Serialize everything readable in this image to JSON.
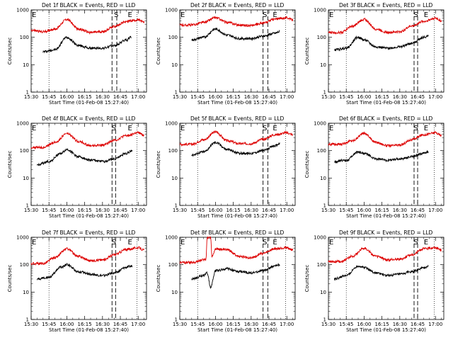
{
  "chart_data": [
    {
      "type": "line",
      "title": "Det 1f BLACK = Events, RED = LLD",
      "xlabel": "Start Time (01-Feb-08 15:27:40)",
      "ylabel": "Counts/sec",
      "x_ticks": [
        "15:30",
        "15:45",
        "16:00",
        "16:15",
        "16:30",
        "16:45",
        "17:00"
      ],
      "y_ticks": [
        "1",
        "10",
        "100",
        "1000"
      ],
      "ylim": [
        1,
        1000
      ],
      "y_scale": "log",
      "markers": {
        "dotted_times": [
          "15:45",
          "16:59"
        ],
        "dashed_times": [
          "16:38",
          "16:42"
        ],
        "S_time": "16:42",
        "E_time": "16:53"
      },
      "series": [
        {
          "color": "#000000",
          "x": [
            "15:40",
            "15:50",
            "16:00",
            "16:10",
            "16:20",
            "16:30",
            "16:40",
            "16:50",
            "16:54"
          ],
          "values": [
            30,
            35,
            100,
            50,
            40,
            40,
            50,
            80,
            100
          ]
        },
        {
          "color": "#dd0000",
          "x": [
            "15:30",
            "15:40",
            "15:50",
            "16:00",
            "16:10",
            "16:20",
            "16:30",
            "16:40",
            "16:50",
            "17:00",
            "17:05"
          ],
          "values": [
            180,
            160,
            200,
            450,
            200,
            150,
            160,
            250,
            380,
            430,
            350
          ]
        }
      ]
    },
    {
      "type": "line",
      "title": "Det 2f BLACK = Events, RED = LLD",
      "xlabel": "Start Time (01-Feb-08 15:27:40)",
      "ylabel": "Counts/sec",
      "x_ticks": [
        "15:30",
        "15:45",
        "16:00",
        "16:15",
        "16:30",
        "16:45",
        "17:00"
      ],
      "y_ticks": [
        "1",
        "10",
        "100",
        "1000"
      ],
      "ylim": [
        1,
        1000
      ],
      "y_scale": "log",
      "markers": {
        "dotted_times": [
          "15:45",
          "16:59"
        ],
        "dashed_times": [
          "16:40",
          "16:44"
        ],
        "S_time": "16:42",
        "E_time": "16:50"
      },
      "series": [
        {
          "color": "#000000",
          "x": [
            "15:40",
            "15:50",
            "16:00",
            "16:10",
            "16:20",
            "16:30",
            "16:40",
            "16:50",
            "16:54"
          ],
          "values": [
            80,
            100,
            200,
            120,
            90,
            90,
            110,
            140,
            160
          ]
        },
        {
          "color": "#dd0000",
          "x": [
            "15:30",
            "15:40",
            "15:50",
            "16:00",
            "16:10",
            "16:20",
            "16:30",
            "16:40",
            "16:50",
            "17:00",
            "17:05"
          ],
          "values": [
            280,
            280,
            350,
            520,
            350,
            280,
            270,
            330,
            460,
            520,
            430
          ]
        }
      ]
    },
    {
      "type": "line",
      "title": "Det 3f BLACK = Events, RED = LLD",
      "xlabel": "Start Time (01-Feb-08 15:27:40)",
      "ylabel": "Counts/sec",
      "x_ticks": [
        "15:30",
        "15:45",
        "16:00",
        "16:15",
        "16:30",
        "16:45",
        "17:00"
      ],
      "y_ticks": [
        "1",
        "10",
        "100",
        "1000"
      ],
      "ylim": [
        1,
        1000
      ],
      "y_scale": "log",
      "markers": {
        "dotted_times": [
          "15:45",
          "16:59"
        ],
        "dashed_times": [
          "16:42",
          "16:45"
        ],
        "S_time": "16:44",
        "E_time": "16:52"
      },
      "series": [
        {
          "color": "#000000",
          "x": [
            "15:35",
            "15:45",
            "15:55",
            "16:00",
            "16:10",
            "16:20",
            "16:30",
            "16:40",
            "16:50",
            "16:54"
          ],
          "values": [
            35,
            40,
            100,
            80,
            45,
            40,
            45,
            60,
            100,
            110
          ]
        },
        {
          "color": "#dd0000",
          "x": [
            "15:30",
            "15:40",
            "15:50",
            "16:00",
            "16:10",
            "16:20",
            "16:30",
            "16:40",
            "16:50",
            "17:00",
            "17:05"
          ],
          "values": [
            150,
            150,
            250,
            450,
            200,
            150,
            160,
            260,
            380,
            500,
            400
          ]
        }
      ]
    },
    {
      "type": "line",
      "title": "Det 4f BLACK = Events, RED = LLD",
      "xlabel": "Start Time (01-Feb-08 15:27:40)",
      "ylabel": "Counts/sec",
      "x_ticks": [
        "15:30",
        "15:45",
        "16:00",
        "16:15",
        "16:30",
        "16:45",
        "17:00"
      ],
      "y_ticks": [
        "1",
        "10",
        "100",
        "1000"
      ],
      "ylim": [
        1,
        1000
      ],
      "y_scale": "log",
      "markers": {
        "dotted_times": [
          "15:45",
          "16:59"
        ],
        "dashed_times": [
          "16:38",
          "16:41"
        ],
        "S_time": "16:40",
        "E_time": "16:53"
      },
      "series": [
        {
          "color": "#000000",
          "x": [
            "15:35",
            "15:45",
            "15:55",
            "16:00",
            "16:10",
            "16:20",
            "16:30",
            "16:40",
            "16:50",
            "16:55"
          ],
          "values": [
            30,
            40,
            80,
            110,
            60,
            45,
            40,
            50,
            80,
            100
          ]
        },
        {
          "color": "#dd0000",
          "x": [
            "15:30",
            "15:40",
            "15:50",
            "16:00",
            "16:10",
            "16:20",
            "16:30",
            "16:40",
            "16:50",
            "17:00",
            "17:05"
          ],
          "values": [
            130,
            130,
            200,
            420,
            220,
            150,
            160,
            240,
            350,
            450,
            360
          ]
        }
      ]
    },
    {
      "type": "line",
      "title": "Det 5f BLACK = Events, RED = LLD",
      "xlabel": "Start Time (01-Feb-08 15:27:40)",
      "ylabel": "Counts/sec",
      "x_ticks": [
        "15:30",
        "15:45",
        "16:00",
        "16:15",
        "16:30",
        "16:45",
        "17:00"
      ],
      "y_ticks": [
        "1",
        "10",
        "100",
        "1000"
      ],
      "ylim": [
        1,
        1000
      ],
      "y_scale": "log",
      "markers": {
        "dotted_times": [
          "15:45",
          "16:59"
        ],
        "dashed_times": [
          "16:40",
          "16:44"
        ],
        "S_time": "16:42",
        "E_time": "16:50"
      },
      "series": [
        {
          "color": "#000000",
          "x": [
            "15:40",
            "15:50",
            "16:00",
            "16:10",
            "16:20",
            "16:30",
            "16:40",
            "16:50",
            "16:54"
          ],
          "values": [
            70,
            90,
            200,
            110,
            80,
            80,
            100,
            150,
            180
          ]
        },
        {
          "color": "#dd0000",
          "x": [
            "15:30",
            "15:40",
            "15:50",
            "16:00",
            "16:10",
            "16:20",
            "16:30",
            "16:40",
            "16:50",
            "17:00",
            "17:05"
          ],
          "values": [
            170,
            170,
            250,
            480,
            230,
            180,
            180,
            260,
            380,
            450,
            380
          ]
        }
      ]
    },
    {
      "type": "line",
      "title": "Det 6f BLACK = Events, RED = LLD",
      "xlabel": "Start Time (01-Feb-08 15:27:40)",
      "ylabel": "Counts/sec",
      "x_ticks": [
        "15:30",
        "15:45",
        "16:00",
        "16:15",
        "16:30",
        "16:45",
        "17:00"
      ],
      "y_ticks": [
        "1",
        "10",
        "100",
        "1000"
      ],
      "ylim": [
        1,
        1000
      ],
      "y_scale": "log",
      "markers": {
        "dotted_times": [
          "15:45",
          "16:59"
        ],
        "dashed_times": [
          "16:42",
          "16:45"
        ],
        "S_time": "16:44",
        "E_time": "16:52"
      },
      "series": [
        {
          "color": "#000000",
          "x": [
            "15:35",
            "15:45",
            "15:55",
            "16:00",
            "16:10",
            "16:20",
            "16:30",
            "16:40",
            "16:50",
            "16:54"
          ],
          "values": [
            40,
            45,
            90,
            80,
            50,
            45,
            50,
            60,
            80,
            90
          ]
        },
        {
          "color": "#dd0000",
          "x": [
            "15:30",
            "15:40",
            "15:50",
            "16:00",
            "16:10",
            "16:20",
            "16:30",
            "16:40",
            "16:50",
            "17:00",
            "17:05"
          ],
          "values": [
            170,
            170,
            230,
            430,
            200,
            150,
            160,
            250,
            380,
            450,
            360
          ]
        }
      ]
    },
    {
      "type": "line",
      "title": "Det 7f BLACK = Events, RED = LLD",
      "xlabel": "Start Time (01-Feb-08 15:27:40)",
      "ylabel": "Counts/sec",
      "x_ticks": [
        "15:30",
        "15:45",
        "16:00",
        "16:15",
        "16:30",
        "16:45",
        "17:00"
      ],
      "y_ticks": [
        "1",
        "10",
        "100",
        "1000"
      ],
      "ylim": [
        1,
        1000
      ],
      "y_scale": "log",
      "markers": {
        "dotted_times": [
          "15:45",
          "16:59"
        ],
        "dashed_times": [
          "16:38",
          "16:41"
        ],
        "S_time": "16:40",
        "E_time": "16:53"
      },
      "series": [
        {
          "color": "#000000",
          "x": [
            "15:35",
            "15:45",
            "15:55",
            "16:00",
            "16:10",
            "16:20",
            "16:30",
            "16:40",
            "16:50",
            "16:55"
          ],
          "values": [
            30,
            35,
            80,
            100,
            55,
            45,
            40,
            50,
            80,
            90
          ]
        },
        {
          "color": "#dd0000",
          "x": [
            "15:30",
            "15:40",
            "15:50",
            "16:00",
            "16:10",
            "16:20",
            "16:30",
            "16:40",
            "16:50",
            "17:00",
            "17:05"
          ],
          "values": [
            110,
            110,
            180,
            380,
            200,
            140,
            150,
            230,
            360,
            420,
            340
          ]
        }
      ]
    },
    {
      "type": "line",
      "title": "Det 8f BLACK = Events, RED = LLD",
      "xlabel": "Start Time (01-Feb-08 15:27:40)",
      "ylabel": "Counts/sec",
      "x_ticks": [
        "15:30",
        "15:45",
        "16:00",
        "16:15",
        "16:30",
        "16:45",
        "17:00"
      ],
      "y_ticks": [
        "1",
        "10",
        "100",
        "1000"
      ],
      "ylim": [
        1,
        1000
      ],
      "y_scale": "log",
      "markers": {
        "dotted_times": [
          "15:45",
          "16:59"
        ],
        "dashed_times": [
          "16:40",
          "16:44"
        ],
        "S_time": "16:42",
        "E_time": "16:50"
      },
      "series": [
        {
          "color": "#000000",
          "x": [
            "15:40",
            "15:50",
            "15:53",
            "15:56",
            "16:00",
            "16:10",
            "16:20",
            "16:30",
            "16:40",
            "16:50",
            "16:54"
          ],
          "values": [
            30,
            40,
            50,
            15,
            60,
            70,
            55,
            50,
            60,
            90,
            100
          ]
        },
        {
          "color": "#dd0000",
          "x": [
            "15:30",
            "15:40",
            "15:50",
            "15:52",
            "15:53",
            "15:56",
            "15:57",
            "16:00",
            "16:10",
            "16:20",
            "16:30",
            "16:40",
            "16:50",
            "17:00",
            "17:05"
          ],
          "values": [
            120,
            120,
            150,
            150,
            1000,
            1000,
            200,
            380,
            350,
            200,
            180,
            260,
            380,
            420,
            350
          ]
        }
      ]
    },
    {
      "type": "line",
      "title": "Det 9f BLACK = Events, RED = LLD",
      "xlabel": "Start Time (01-Feb-08 15:27:40)",
      "ylabel": "Counts/sec",
      "x_ticks": [
        "15:30",
        "15:45",
        "16:00",
        "16:15",
        "16:30",
        "16:45",
        "17:00"
      ],
      "y_ticks": [
        "1",
        "10",
        "100",
        "1000"
      ],
      "ylim": [
        1,
        1000
      ],
      "y_scale": "log",
      "markers": {
        "dotted_times": [
          "15:45",
          "16:59"
        ],
        "dashed_times": [
          "16:42",
          "16:45"
        ],
        "S_time": "16:44",
        "E_time": "16:52"
      },
      "series": [
        {
          "color": "#000000",
          "x": [
            "15:35",
            "15:45",
            "15:55",
            "16:00",
            "16:10",
            "16:20",
            "16:30",
            "16:40",
            "16:50",
            "16:54"
          ],
          "values": [
            30,
            40,
            90,
            80,
            50,
            40,
            45,
            55,
            75,
            90
          ]
        },
        {
          "color": "#dd0000",
          "x": [
            "15:30",
            "15:40",
            "15:50",
            "16:00",
            "16:10",
            "16:20",
            "16:30",
            "16:40",
            "16:50",
            "17:00",
            "17:05"
          ],
          "values": [
            130,
            130,
            200,
            400,
            200,
            150,
            160,
            230,
            380,
            420,
            350
          ]
        }
      ]
    }
  ],
  "marker_labels": {
    "start": "S",
    "end": "E"
  }
}
